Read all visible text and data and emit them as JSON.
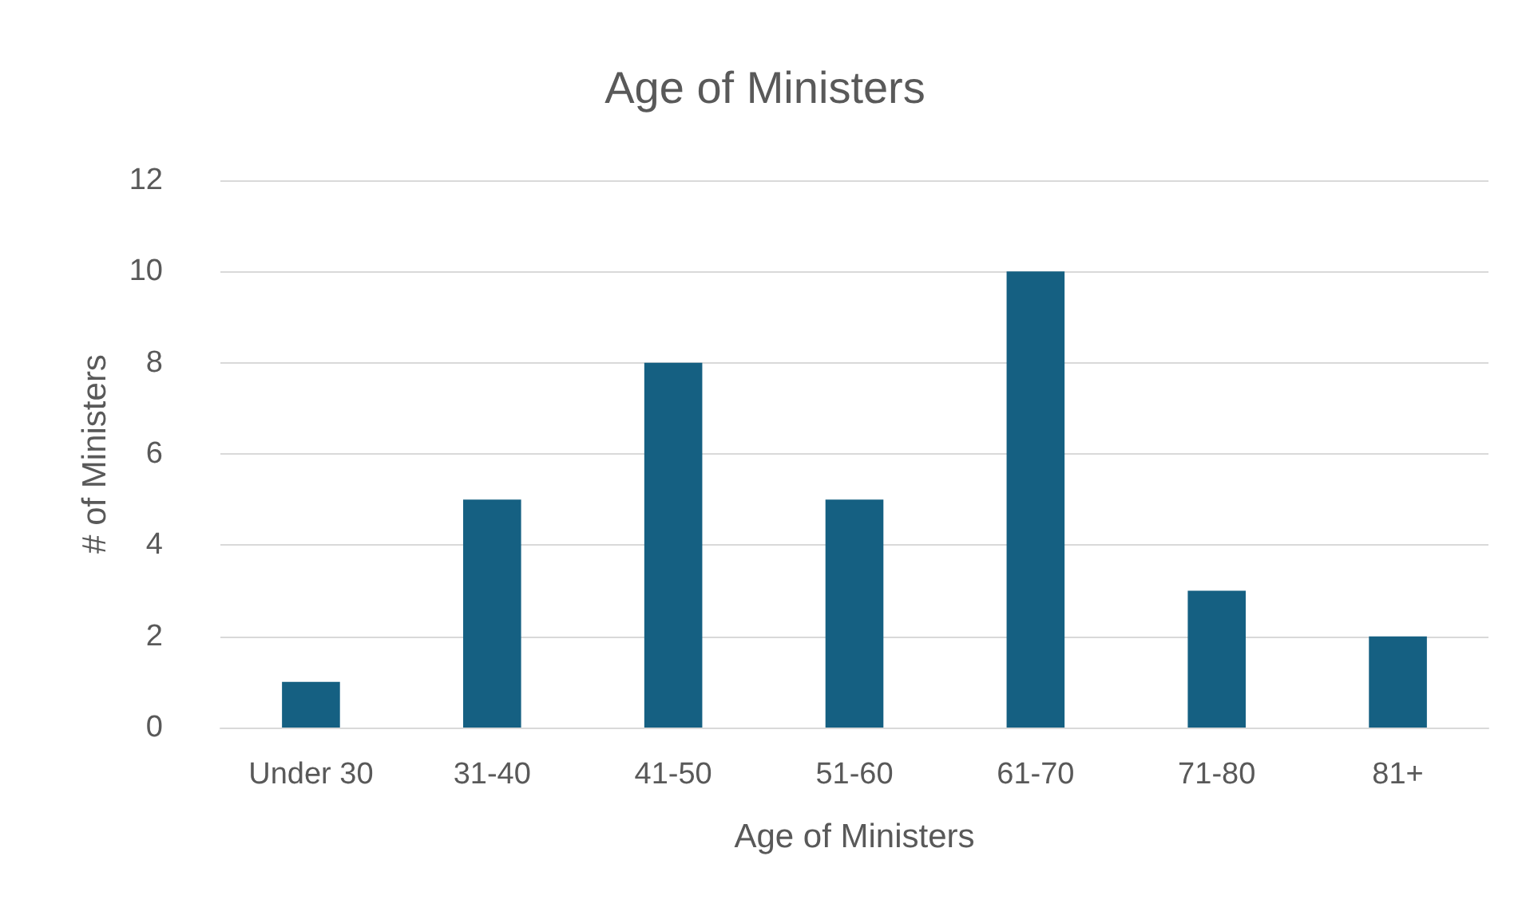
{
  "chart_data": {
    "type": "bar",
    "title": "Age of Ministers",
    "xlabel": "Age of Ministers",
    "ylabel": "# of Ministers",
    "categories": [
      "Under 30",
      "31-40",
      "41-50",
      "51-60",
      "61-70",
      "71-80",
      "81+"
    ],
    "values": [
      1,
      5,
      8,
      5,
      10,
      3,
      2
    ],
    "color": "#156082",
    "ylim": [
      0,
      12
    ],
    "yticks": [
      0,
      2,
      4,
      6,
      8,
      10,
      12
    ],
    "grid": "y"
  }
}
